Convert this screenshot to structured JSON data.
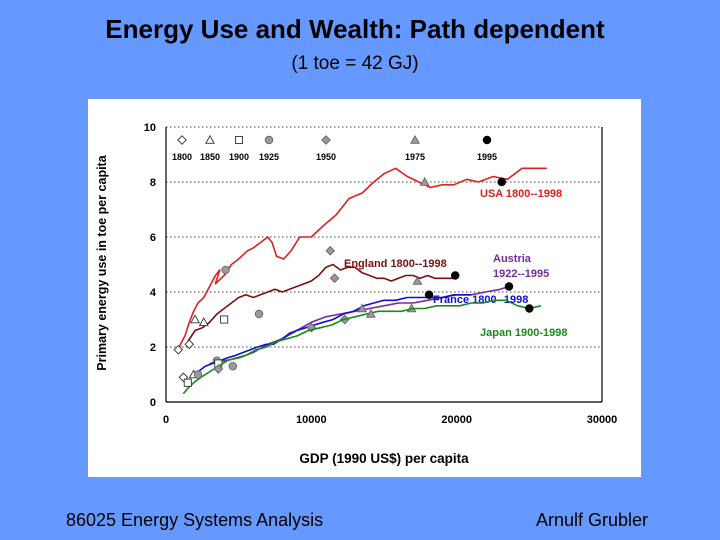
{
  "slide": {
    "title": "Energy Use and Wealth: Path dependent",
    "subtitle": "(1 toe = 42 GJ)",
    "footer_left": "86025 Energy Systems Analysis",
    "footer_right": "Arnulf Grubler"
  },
  "chart_data": {
    "type": "line",
    "title": "",
    "xlabel": "GDP (1990 US$) per capita",
    "ylabel": "Primary energy use in toe per capita",
    "xlim": [
      0,
      30000
    ],
    "ylim": [
      0,
      10
    ],
    "xticks": [
      0,
      10000,
      20000,
      30000
    ],
    "yticks": [
      0,
      2,
      4,
      6,
      8,
      10
    ],
    "grid": "horizontal dotted",
    "year_legend": [
      {
        "year": "1800",
        "marker": "diamond-open"
      },
      {
        "year": "1850",
        "marker": "triangle-open"
      },
      {
        "year": "1900",
        "marker": "square-open"
      },
      {
        "year": "1925",
        "marker": "circle-grey"
      },
      {
        "year": "1950",
        "marker": "diamond-grey"
      },
      {
        "year": "1975",
        "marker": "triangle-grey"
      },
      {
        "year": "1995",
        "marker": "circle-black"
      }
    ],
    "series": [
      {
        "name": "USA 1800--1998",
        "color": "#e02020",
        "points": [
          [
            800,
            1.8
          ],
          [
            1000,
            2.1
          ],
          [
            1300,
            2.4
          ],
          [
            1600,
            2.9
          ],
          [
            1900,
            3.3
          ],
          [
            2200,
            3.6
          ],
          [
            2600,
            3.8
          ],
          [
            3000,
            4.2
          ],
          [
            3400,
            4.6
          ],
          [
            3700,
            4.8
          ],
          [
            3400,
            4.3
          ],
          [
            4000,
            4.6
          ],
          [
            4500,
            5.0
          ],
          [
            5000,
            5.2
          ],
          [
            5600,
            5.5
          ],
          [
            6000,
            5.6
          ],
          [
            6500,
            5.8
          ],
          [
            7000,
            6.0
          ],
          [
            7300,
            5.8
          ],
          [
            7600,
            5.3
          ],
          [
            8100,
            5.2
          ],
          [
            8600,
            5.5
          ],
          [
            9200,
            6.0
          ],
          [
            10000,
            6.0
          ],
          [
            10800,
            6.4
          ],
          [
            11700,
            6.8
          ],
          [
            12600,
            7.4
          ],
          [
            13500,
            7.6
          ],
          [
            14300,
            8.0
          ],
          [
            15000,
            8.3
          ],
          [
            15800,
            8.5
          ],
          [
            16600,
            8.2
          ],
          [
            17400,
            8.0
          ],
          [
            18200,
            7.8
          ],
          [
            19000,
            7.9
          ],
          [
            19800,
            7.9
          ],
          [
            20700,
            8.1
          ],
          [
            21500,
            8.0
          ],
          [
            22500,
            8.2
          ],
          [
            23500,
            8.1
          ],
          [
            24500,
            8.5
          ],
          [
            25500,
            8.5
          ],
          [
            26200,
            8.5
          ]
        ],
        "markers": [
          [
            850,
            1.9,
            "diamond-open"
          ],
          [
            2000,
            3.0,
            "triangle-open"
          ],
          [
            4100,
            4.8,
            "circle-grey"
          ],
          [
            11300,
            5.5,
            "diamond-grey"
          ],
          [
            17800,
            8.0,
            "triangle-grey"
          ],
          [
            23100,
            8.0,
            "circle-black"
          ]
        ]
      },
      {
        "name": "England 1800--1998",
        "color": "#7a1010",
        "points": [
          [
            1500,
            2.2
          ],
          [
            2000,
            2.6
          ],
          [
            2500,
            2.7
          ],
          [
            3000,
            2.9
          ],
          [
            3500,
            3.2
          ],
          [
            4000,
            3.4
          ],
          [
            4500,
            3.6
          ],
          [
            5000,
            3.8
          ],
          [
            5500,
            3.9
          ],
          [
            6000,
            3.8
          ],
          [
            6500,
            3.9
          ],
          [
            7000,
            4.0
          ],
          [
            7500,
            4.1
          ],
          [
            8000,
            4.0
          ],
          [
            8500,
            4.1
          ],
          [
            9000,
            4.2
          ],
          [
            9500,
            4.3
          ],
          [
            10000,
            4.4
          ],
          [
            10500,
            4.6
          ],
          [
            11000,
            4.9
          ],
          [
            11500,
            5.0
          ],
          [
            12000,
            4.8
          ],
          [
            12500,
            4.9
          ],
          [
            13000,
            4.9
          ],
          [
            13500,
            4.7
          ],
          [
            14000,
            4.6
          ],
          [
            14500,
            4.5
          ],
          [
            15000,
            4.5
          ],
          [
            15500,
            4.4
          ],
          [
            16000,
            4.5
          ],
          [
            16500,
            4.6
          ],
          [
            17000,
            4.6
          ],
          [
            17500,
            4.5
          ],
          [
            18000,
            4.6
          ],
          [
            18500,
            4.5
          ],
          [
            19000,
            4.5
          ],
          [
            20000,
            4.5
          ]
        ],
        "markers": [
          [
            1600,
            2.1,
            "diamond-open"
          ],
          [
            2600,
            2.9,
            "triangle-open"
          ],
          [
            4000,
            3.0,
            "square-open"
          ],
          [
            6400,
            3.2,
            "circle-grey"
          ],
          [
            11600,
            4.5,
            "diamond-grey"
          ],
          [
            17300,
            4.4,
            "triangle-grey"
          ],
          [
            19900,
            4.6,
            "circle-black"
          ]
        ]
      },
      {
        "name": "Austria 1922--1995",
        "color": "#7a2aa0",
        "points": [
          [
            3000,
            1.4
          ],
          [
            4000,
            1.5
          ],
          [
            5000,
            1.6
          ],
          [
            6000,
            1.8
          ],
          [
            7000,
            2.1
          ],
          [
            8000,
            2.3
          ],
          [
            9000,
            2.6
          ],
          [
            10000,
            2.9
          ],
          [
            11000,
            3.1
          ],
          [
            12000,
            3.2
          ],
          [
            13000,
            3.3
          ],
          [
            14000,
            3.4
          ],
          [
            15000,
            3.5
          ],
          [
            16000,
            3.6
          ],
          [
            17000,
            3.6
          ],
          [
            18000,
            3.7
          ],
          [
            19000,
            3.8
          ],
          [
            20000,
            3.9
          ],
          [
            21000,
            3.9
          ],
          [
            22000,
            4.0
          ],
          [
            23000,
            4.1
          ],
          [
            23600,
            4.2
          ]
        ],
        "markers": [
          [
            3500,
            1.5,
            "circle-grey"
          ],
          [
            12300,
            3.0,
            "diamond-grey"
          ],
          [
            16900,
            3.4,
            "triangle-grey"
          ],
          [
            23600,
            4.2,
            "circle-black"
          ]
        ]
      },
      {
        "name": "France 1800--1998",
        "color": "#1010d0",
        "points": [
          [
            1800,
            0.9
          ],
          [
            2200,
            1.1
          ],
          [
            2700,
            1.3
          ],
          [
            3200,
            1.4
          ],
          [
            3700,
            1.5
          ],
          [
            4200,
            1.6
          ],
          [
            4800,
            1.7
          ],
          [
            5300,
            1.8
          ],
          [
            5800,
            1.9
          ],
          [
            6300,
            2.0
          ],
          [
            6900,
            2.1
          ],
          [
            7400,
            2.1
          ],
          [
            8000,
            2.3
          ],
          [
            8500,
            2.5
          ],
          [
            9000,
            2.6
          ],
          [
            9600,
            2.7
          ],
          [
            10200,
            2.8
          ],
          [
            10800,
            2.9
          ],
          [
            11500,
            3.0
          ],
          [
            12200,
            3.2
          ],
          [
            12900,
            3.3
          ],
          [
            13600,
            3.5
          ],
          [
            14300,
            3.6
          ],
          [
            15000,
            3.7
          ],
          [
            15800,
            3.7
          ],
          [
            16600,
            3.8
          ],
          [
            17400,
            3.8
          ],
          [
            18200,
            3.8
          ],
          [
            19000,
            3.8
          ],
          [
            19800,
            3.9
          ],
          [
            20600,
            3.9
          ],
          [
            21000,
            3.9
          ]
        ],
        "markers": [
          [
            1200,
            0.9,
            "diamond-open"
          ],
          [
            1900,
            1.0,
            "triangle-open"
          ],
          [
            3600,
            1.4,
            "square-open"
          ],
          [
            4600,
            1.3,
            "circle-grey"
          ],
          [
            10000,
            2.7,
            "diamond-grey"
          ],
          [
            13500,
            3.4,
            "triangle-grey"
          ],
          [
            18100,
            3.9,
            "circle-black"
          ]
        ]
      },
      {
        "name": "Japan 1900-1998",
        "color": "#1a8a1a",
        "points": [
          [
            1200,
            0.3
          ],
          [
            1500,
            0.5
          ],
          [
            1900,
            0.7
          ],
          [
            2400,
            0.9
          ],
          [
            3000,
            1.1
          ],
          [
            3600,
            1.3
          ],
          [
            4200,
            1.5
          ],
          [
            4800,
            1.6
          ],
          [
            5500,
            1.7
          ],
          [
            6200,
            1.9
          ],
          [
            6900,
            2.0
          ],
          [
            7600,
            2.2
          ],
          [
            8300,
            2.3
          ],
          [
            9000,
            2.4
          ],
          [
            9800,
            2.6
          ],
          [
            10600,
            2.7
          ],
          [
            11400,
            2.8
          ],
          [
            12200,
            3.0
          ],
          [
            13000,
            3.1
          ],
          [
            13800,
            3.2
          ],
          [
            14600,
            3.3
          ],
          [
            15400,
            3.3
          ],
          [
            16200,
            3.3
          ],
          [
            17000,
            3.4
          ],
          [
            17800,
            3.4
          ],
          [
            18600,
            3.5
          ],
          [
            19400,
            3.5
          ],
          [
            20200,
            3.5
          ],
          [
            21000,
            3.6
          ],
          [
            21800,
            3.6
          ],
          [
            22600,
            3.7
          ],
          [
            23400,
            3.7
          ],
          [
            24200,
            3.5
          ],
          [
            25000,
            3.4
          ],
          [
            25800,
            3.5
          ]
        ],
        "markers": [
          [
            1500,
            0.7,
            "square-open"
          ],
          [
            2200,
            1.0,
            "circle-grey"
          ],
          [
            3600,
            1.2,
            "diamond-grey"
          ],
          [
            14100,
            3.2,
            "triangle-grey"
          ],
          [
            25000,
            3.4,
            "circle-black"
          ]
        ]
      }
    ]
  }
}
